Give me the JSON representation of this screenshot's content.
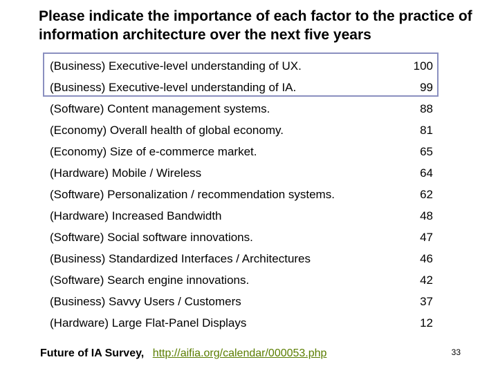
{
  "title": "Please indicate the importance of each factor to the practice of information architecture over the next five years",
  "factors": [
    {
      "label": "(Business) Executive-level understanding of UX.",
      "score": "100"
    },
    {
      "label": "(Business) Executive-level understanding of IA.",
      "score": "99"
    },
    {
      "label": "(Software) Content management systems.",
      "score": "88"
    },
    {
      "label": "(Economy) Overall health of global economy.",
      "score": "81"
    },
    {
      "label": "(Economy) Size of e-commerce market.",
      "score": "65"
    },
    {
      "label": "(Hardware) Mobile / Wireless",
      "score": "64"
    },
    {
      "label": "(Software) Personalization / recommendation systems.",
      "score": "62"
    },
    {
      "label": "(Hardware) Increased Bandwidth",
      "score": "48"
    },
    {
      "label": "(Software) Social software innovations.",
      "score": "47"
    },
    {
      "label": "(Business) Standardized Interfaces / Architectures",
      "score": "46"
    },
    {
      "label": "(Software) Search engine innovations.",
      "score": "42"
    },
    {
      "label": "(Business) Savvy Users / Customers",
      "score": "37"
    },
    {
      "label": "(Hardware) Large Flat-Panel Displays",
      "score": "12"
    }
  ],
  "footer": {
    "source": "Future of IA Survey,",
    "link": "http://aifia.org/calendar/000053.php"
  },
  "page_number": "33",
  "colors": {
    "highlight_border": "#8a8fbf",
    "link": "#5a7d00"
  }
}
